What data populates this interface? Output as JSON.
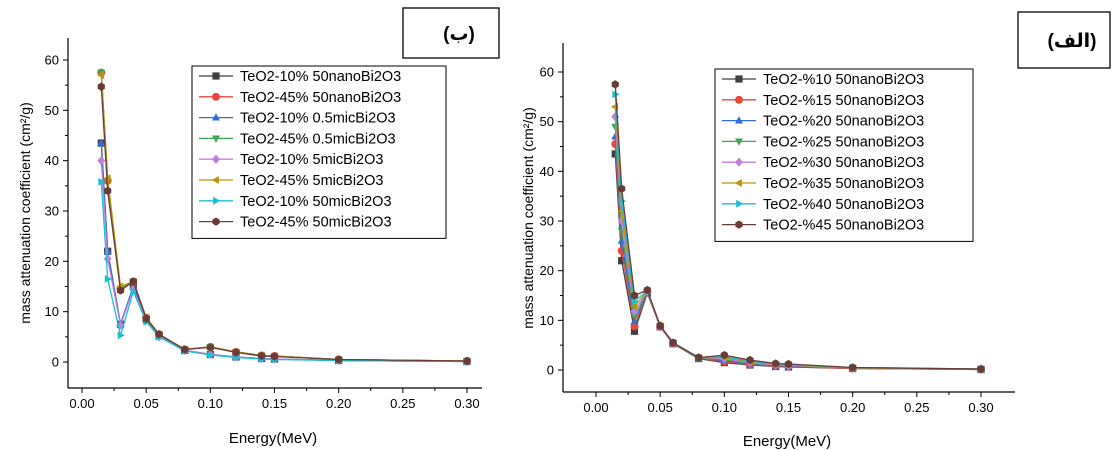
{
  "chart_data": [
    {
      "type": "line",
      "panel_label": "(ب)",
      "xlabel": "Energy(MeV)",
      "ylabel": "mass attenuation coefficient (cm²/g)",
      "xlim": [
        -0.03,
        0.315
      ],
      "ylim": [
        -4,
        65
      ],
      "xticks": [
        "0.00",
        "0.05",
        "0.10",
        "0.15",
        "0.20",
        "0.25",
        "0.30"
      ],
      "yticks": [
        "0",
        "10",
        "20",
        "30",
        "40",
        "50",
        "60"
      ],
      "grid": false,
      "legend_position": "top-right",
      "x": [
        0.015,
        0.02,
        0.03,
        0.04,
        0.05,
        0.06,
        0.08,
        0.1,
        0.12,
        0.14,
        0.15,
        0.2,
        0.3
      ],
      "series": [
        {
          "name": "TeO2-10% 50nanoBi2O3",
          "color": "#404040",
          "marker": "square",
          "values": [
            43.5,
            22,
            7.5,
            15,
            8.5,
            5.2,
            2.3,
            1.5,
            1.0,
            0.7,
            0.6,
            0.3,
            0.1
          ]
        },
        {
          "name": "TeO2-45% 50nanoBi2O3",
          "color": "#e8473a",
          "marker": "circle",
          "values": [
            57.5,
            36,
            14.5,
            16,
            8.8,
            5.5,
            2.5,
            3.0,
            2.0,
            1.3,
            1.2,
            0.5,
            0.2
          ]
        },
        {
          "name": "TeO2-10% 0.5micBi2O3",
          "color": "#2f6fd6",
          "marker": "triangle-up",
          "values": [
            43.5,
            22,
            7.5,
            15,
            8.5,
            5.2,
            2.3,
            1.5,
            1.0,
            0.7,
            0.6,
            0.3,
            0.1
          ]
        },
        {
          "name": "TeO2-45% 0.5micBi2O3",
          "color": "#3fa45a",
          "marker": "triangle-down",
          "values": [
            57.5,
            36,
            14.5,
            16,
            8.8,
            5.5,
            2.5,
            3.0,
            2.0,
            1.3,
            1.2,
            0.5,
            0.2
          ]
        },
        {
          "name": "TeO2-10% 5micBi2O3",
          "color": "#c07fe0",
          "marker": "diamond",
          "values": [
            40,
            20.5,
            7.3,
            14.5,
            8.3,
            5.0,
            2.3,
            1.5,
            1.0,
            0.7,
            0.6,
            0.3,
            0.1
          ]
        },
        {
          "name": "TeO2-45% 5micBi2O3",
          "color": "#b8960a",
          "marker": "triangle-left",
          "values": [
            57,
            36.5,
            15,
            16,
            8.8,
            5.5,
            2.5,
            3.0,
            2.0,
            1.3,
            1.2,
            0.5,
            0.2
          ]
        },
        {
          "name": "TeO2-10% 50micBi2O3",
          "color": "#1bc0d0",
          "marker": "triangle-right",
          "values": [
            35.8,
            16.5,
            5.3,
            14,
            8.0,
            5.0,
            2.2,
            1.4,
            0.9,
            0.6,
            0.5,
            0.3,
            0.1
          ]
        },
        {
          "name": "TeO2-45% 50micBi2O3",
          "color": "#6b3b38",
          "marker": "hexagon",
          "values": [
            54.7,
            34,
            14.2,
            16,
            8.6,
            5.5,
            2.5,
            2.9,
            1.9,
            1.2,
            1.1,
            0.5,
            0.2
          ]
        }
      ]
    },
    {
      "type": "line",
      "panel_label": "(الف)",
      "xlabel": "Energy(MeV)",
      "ylabel": "mass attenuation coefficient (cm²/g)",
      "xlim": [
        -0.03,
        0.315
      ],
      "ylim": [
        -5,
        65
      ],
      "xticks": [
        "0.00",
        "0.05",
        "0.10",
        "0.15",
        "0.20",
        "0.25",
        "0.30"
      ],
      "yticks": [
        "0",
        "10",
        "20",
        "30",
        "40",
        "50",
        "60"
      ],
      "grid": false,
      "legend_position": "top-right",
      "x": [
        0.015,
        0.02,
        0.03,
        0.04,
        0.05,
        0.06,
        0.08,
        0.1,
        0.12,
        0.14,
        0.15,
        0.2,
        0.3
      ],
      "series": [
        {
          "name": "TeO2-%10 50nanoBi2O3",
          "color": "#404040",
          "marker": "square",
          "values": [
            43.5,
            22,
            7.8,
            15.5,
            8.7,
            5.3,
            2.3,
            1.5,
            1.0,
            0.7,
            0.6,
            0.3,
            0.1
          ]
        },
        {
          "name": "TeO2-%15 50nanoBi2O3",
          "color": "#e8473a",
          "marker": "circle",
          "values": [
            45.5,
            24,
            8.8,
            15.6,
            8.7,
            5.3,
            2.4,
            1.7,
            1.1,
            0.8,
            0.7,
            0.3,
            0.1
          ]
        },
        {
          "name": "TeO2-%20 50nanoBi2O3",
          "color": "#2f6fd6",
          "marker": "triangle-up",
          "values": [
            47,
            26,
            9.8,
            15.7,
            8.8,
            5.4,
            2.4,
            1.9,
            1.3,
            0.9,
            0.8,
            0.4,
            0.1
          ]
        },
        {
          "name": "TeO2-%25 50nanoBi2O3",
          "color": "#3fa45a",
          "marker": "triangle-down",
          "values": [
            49,
            28,
            10.8,
            15.8,
            8.8,
            5.4,
            2.4,
            2.1,
            1.4,
            1.0,
            0.9,
            0.4,
            0.1
          ]
        },
        {
          "name": "TeO2-%30 50nanoBi2O3",
          "color": "#c07fe0",
          "marker": "diamond",
          "values": [
            51,
            30,
            11.8,
            15.9,
            8.8,
            5.4,
            2.5,
            2.3,
            1.5,
            1.0,
            0.9,
            0.4,
            0.2
          ]
        },
        {
          "name": "TeO2-%35 50nanoBi2O3",
          "color": "#b8960a",
          "marker": "triangle-left",
          "values": [
            53,
            32,
            12.8,
            16.0,
            8.9,
            5.5,
            2.5,
            2.5,
            1.7,
            1.1,
            1.0,
            0.4,
            0.2
          ]
        },
        {
          "name": "TeO2-%40 50nanoBi2O3",
          "color": "#1bc0d0",
          "marker": "triangle-right",
          "values": [
            55.5,
            34,
            13.8,
            16.0,
            8.9,
            5.5,
            2.5,
            2.7,
            1.8,
            1.2,
            1.1,
            0.5,
            0.2
          ]
        },
        {
          "name": "TeO2-%45 50nanoBi2O3",
          "color": "#6b3b38",
          "marker": "hexagon",
          "values": [
            57.5,
            36.5,
            15,
            16.1,
            8.9,
            5.5,
            2.5,
            3.0,
            2.0,
            1.3,
            1.2,
            0.5,
            0.2
          ]
        }
      ]
    }
  ]
}
